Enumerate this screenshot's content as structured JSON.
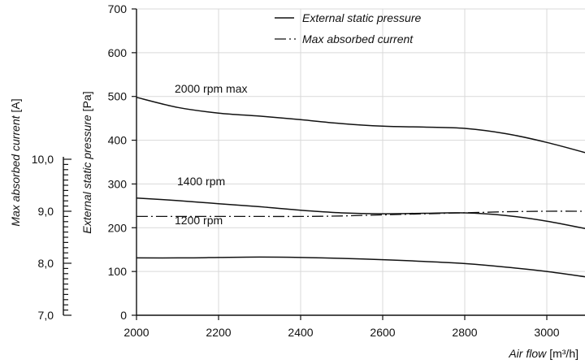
{
  "chart_data": {
    "type": "line",
    "xlabel_italic": "Air flow",
    "xlabel_unit": "[m³/h]",
    "ylabel_italic": "External static pressure",
    "ylabel_unit": "[Pa]",
    "y2label_italic": "Max absorbed current",
    "y2label_unit": "[A]",
    "xlim": [
      2000,
      3100
    ],
    "ylim": [
      0,
      700
    ],
    "y2lim": [
      7.0,
      10.0
    ],
    "x_ticks": [
      "2000",
      "2200",
      "2400",
      "2600",
      "2800",
      "3000"
    ],
    "y_ticks": [
      "0",
      "100",
      "200",
      "300",
      "400",
      "500",
      "600",
      "700"
    ],
    "y2_ticks": [
      "7,0",
      "8,0",
      "9,0",
      "10,0"
    ],
    "grid": true,
    "legend_position": "top",
    "legend": [
      {
        "label": "External static pressure",
        "style": "solid"
      },
      {
        "label": "Max absorbed current",
        "style": "dash-dot"
      }
    ],
    "series": [
      {
        "name": "2000 rpm max",
        "style": "solid",
        "x": [
          2000,
          2100,
          2200,
          2300,
          2400,
          2500,
          2600,
          2700,
          2800,
          2900,
          3000,
          3100
        ],
        "y": [
          498,
          475,
          462,
          455,
          447,
          438,
          432,
          430,
          427,
          415,
          395,
          370
        ]
      },
      {
        "name": "1400 rpm",
        "style": "solid",
        "x": [
          2000,
          2100,
          2200,
          2300,
          2400,
          2500,
          2600,
          2700,
          2800,
          2900,
          3000,
          3100
        ],
        "y": [
          268,
          262,
          255,
          248,
          240,
          234,
          232,
          233,
          234,
          228,
          215,
          197
        ]
      },
      {
        "name": "1200 rpm",
        "style": "solid",
        "x": [
          2000,
          2100,
          2200,
          2300,
          2400,
          2500,
          2600,
          2700,
          2800,
          2900,
          3000,
          3100
        ],
        "y": [
          131,
          131,
          132,
          133,
          132,
          130,
          127,
          123,
          118,
          110,
          100,
          87
        ]
      },
      {
        "name": "Max absorbed current",
        "style": "dash-dot",
        "axis": "y2",
        "x": [
          2000,
          2100,
          2200,
          2300,
          2400,
          2500,
          2600,
          2700,
          2800,
          2900,
          3000,
          3100
        ],
        "y": [
          8.9,
          8.9,
          8.9,
          8.9,
          8.9,
          8.91,
          8.93,
          8.95,
          8.97,
          8.99,
          9.0,
          9.0
        ]
      }
    ]
  }
}
